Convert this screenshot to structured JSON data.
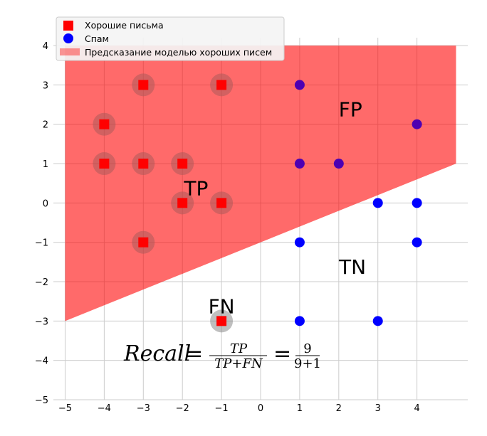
{
  "chart_data": {
    "type": "scatter",
    "xlim": [
      -5.3,
      5.3
    ],
    "ylim": [
      -5,
      4.2
    ],
    "x_ticks": [
      -5,
      -4,
      -3,
      -2,
      -1,
      0,
      1,
      2,
      3,
      4
    ],
    "y_ticks": [
      -5,
      -4,
      -3,
      -2,
      -1,
      0,
      1,
      2,
      3,
      4
    ],
    "x_tick_labels": [
      "−5",
      "−4",
      "−3",
      "−2",
      "−1",
      "0",
      "1",
      "2",
      "3",
      "4"
    ],
    "y_tick_labels": [
      "−5",
      "−4",
      "−3",
      "−2",
      "−1",
      "0",
      "1",
      "2",
      "3",
      "4"
    ],
    "grid": true,
    "legend_position": "top-left",
    "series": [
      {
        "name": "Хорошие письма",
        "marker": "square",
        "color": "#ff0000",
        "points": [
          [
            -3,
            3
          ],
          [
            -1,
            3
          ],
          [
            -4,
            2
          ],
          [
            -4,
            1
          ],
          [
            -3,
            1
          ],
          [
            -2,
            1
          ],
          [
            -2,
            0
          ],
          [
            -1,
            0
          ],
          [
            -3,
            -1
          ],
          [
            -1,
            -3
          ]
        ]
      },
      {
        "name": "Спам",
        "marker": "circle",
        "color": "#0000ff",
        "points": [
          [
            1,
            3
          ],
          [
            4,
            2
          ],
          [
            1,
            1
          ],
          [
            2,
            1
          ],
          [
            3,
            0
          ],
          [
            4,
            0
          ],
          [
            1,
            -1
          ],
          [
            4,
            -1
          ],
          [
            1,
            -3
          ],
          [
            3,
            -3
          ]
        ]
      }
    ],
    "region": {
      "name": "Предсказание моделью хороших писем",
      "color": "#ff0000",
      "opacity": 0.4,
      "polygon": [
        [
          -5,
          4
        ],
        [
          5,
          4
        ],
        [
          5,
          1
        ],
        [
          -5,
          -3
        ]
      ]
    },
    "annotations": [
      {
        "text": "FP",
        "x": 2.3,
        "y": 2.2
      },
      {
        "text": "TP",
        "x": -1.65,
        "y": 0.2
      },
      {
        "text": "TN",
        "x": 2.35,
        "y": -1.8
      },
      {
        "text": "FN",
        "x": -1,
        "y": -2.8
      }
    ],
    "formula": {
      "lhs": "Recall",
      "eq": "=",
      "num1": "TP",
      "den1": "TP+FN",
      "num2": "9",
      "den2": "9+1"
    }
  }
}
